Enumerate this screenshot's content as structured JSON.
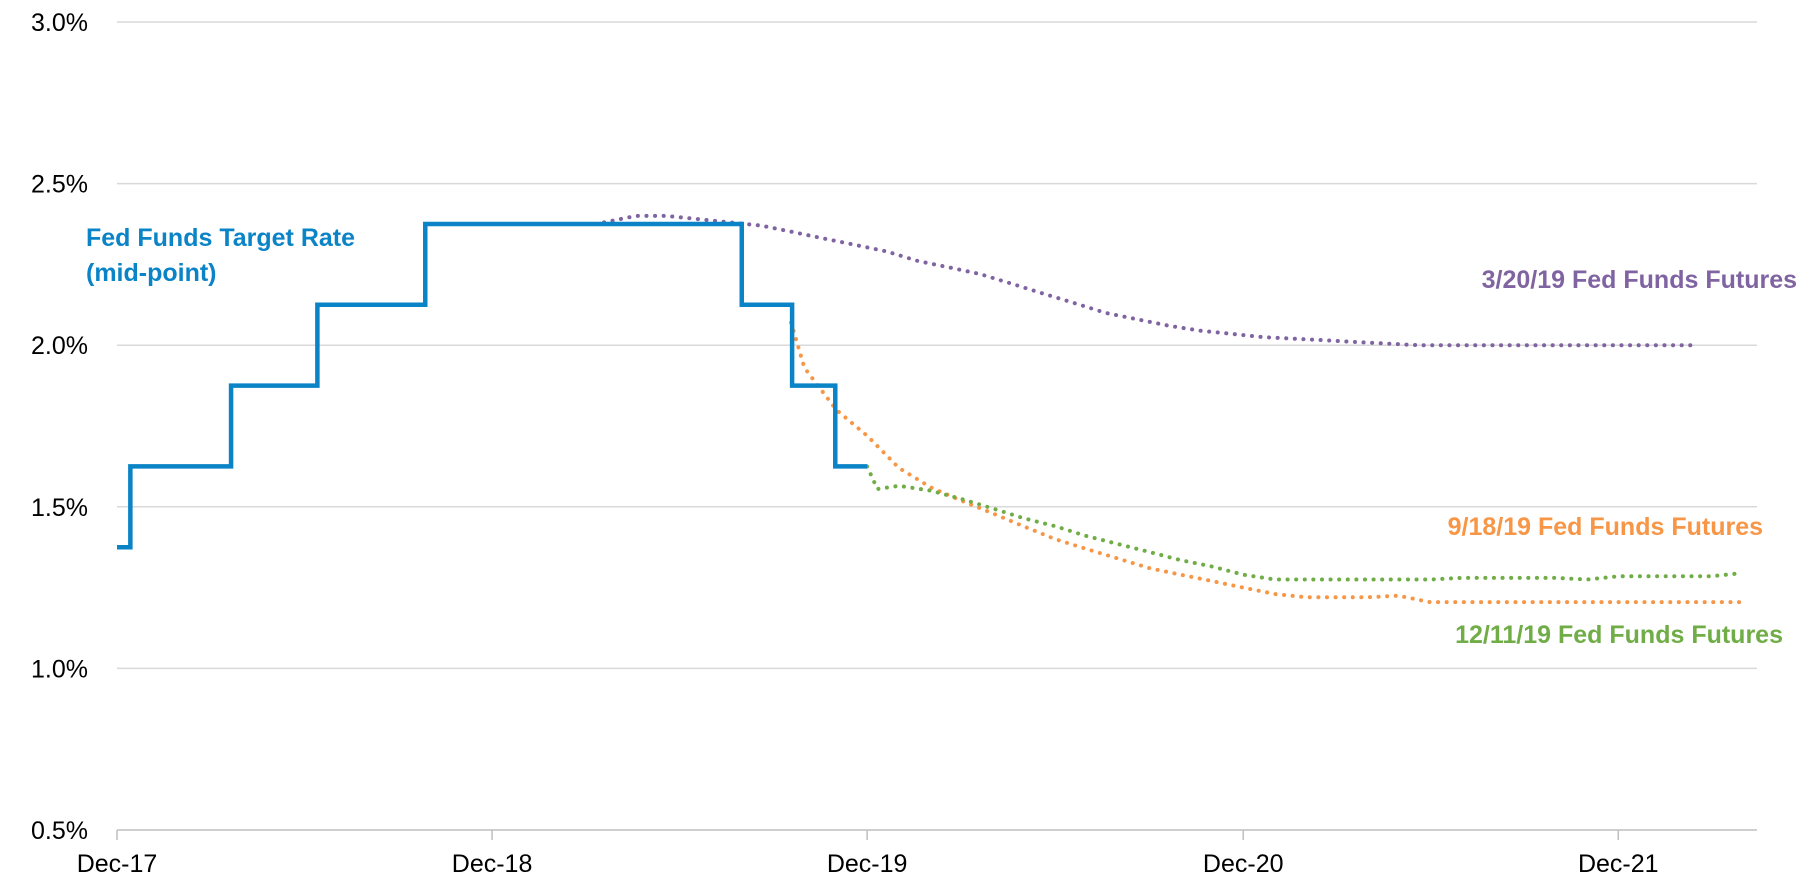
{
  "chart_data": {
    "type": "line",
    "title": "",
    "xlabel": "",
    "ylabel": "",
    "ylim": [
      0.5,
      3.0
    ],
    "xlim": [
      "2017-12-01",
      "2022-04-15"
    ],
    "grid": true,
    "y_ticks": [
      {
        "value": 0.5,
        "label": "0.5%"
      },
      {
        "value": 1.0,
        "label": "1.0%"
      },
      {
        "value": 1.5,
        "label": "1.5%"
      },
      {
        "value": 2.0,
        "label": "2.0%"
      },
      {
        "value": 2.5,
        "label": "2.5%"
      },
      {
        "value": 3.0,
        "label": "3.0%"
      }
    ],
    "x_ticks": [
      {
        "value": "2017-12-01",
        "label": "Dec-17"
      },
      {
        "value": "2018-12-01",
        "label": "Dec-18"
      },
      {
        "value": "2019-12-01",
        "label": "Dec-19"
      },
      {
        "value": "2020-12-01",
        "label": "Dec-20"
      },
      {
        "value": "2021-12-01",
        "label": "Dec-21"
      }
    ],
    "series": [
      {
        "name": "Fed Funds Target Rate (mid-point)",
        "label_lines": [
          "Fed Funds Target Rate",
          "(mid-point)"
        ],
        "color": "#0a84c6",
        "style": "step",
        "x": [
          "2017-12-01",
          "2017-12-14",
          "2018-03-22",
          "2018-06-14",
          "2018-09-27",
          "2018-12-20",
          "2019-08-01",
          "2019-09-19",
          "2019-10-31",
          "2019-12-01"
        ],
        "y": [
          1.375,
          1.625,
          1.875,
          2.125,
          2.375,
          2.375,
          2.125,
          1.875,
          1.625,
          1.625
        ]
      },
      {
        "name": "3/20/19 Fed Funds Futures",
        "color": "#8064a2",
        "style": "dotted",
        "x": [
          "2019-03-20",
          "2019-04-20",
          "2019-05-20",
          "2019-06-20",
          "2019-07-20",
          "2019-08-20",
          "2019-09-20",
          "2019-10-20",
          "2019-11-20",
          "2019-12-20",
          "2020-01-20",
          "2020-02-20",
          "2020-03-20",
          "2020-04-20",
          "2020-05-20",
          "2020-06-20",
          "2020-07-20",
          "2020-08-20",
          "2020-09-20",
          "2020-10-20",
          "2020-11-20",
          "2020-12-20",
          "2021-01-20",
          "2021-02-20",
          "2021-03-20",
          "2021-04-20",
          "2021-05-20",
          "2021-06-20",
          "2021-07-20",
          "2021-08-20",
          "2021-09-20",
          "2021-10-20",
          "2021-11-20",
          "2021-12-20",
          "2022-01-20",
          "2022-02-15"
        ],
        "y": [
          2.38,
          2.4,
          2.4,
          2.39,
          2.38,
          2.37,
          2.35,
          2.33,
          2.31,
          2.29,
          2.26,
          2.24,
          2.22,
          2.19,
          2.16,
          2.13,
          2.1,
          2.08,
          2.06,
          2.045,
          2.035,
          2.025,
          2.02,
          2.015,
          2.01,
          2.005,
          2.0,
          2.0,
          2.0,
          2.0,
          2.0,
          2.0,
          2.0,
          2.0,
          2.0,
          2.0
        ]
      },
      {
        "name": "9/18/19 Fed Funds Futures",
        "color": "#f79646",
        "style": "dotted",
        "x": [
          "2019-09-18",
          "2019-10-01",
          "2019-11-01",
          "2019-12-01",
          "2020-01-01",
          "2020-02-01",
          "2020-03-01",
          "2020-04-01",
          "2020-05-01",
          "2020-06-01",
          "2020-07-01",
          "2020-08-01",
          "2020-09-01",
          "2020-10-01",
          "2020-11-01",
          "2020-12-01",
          "2021-01-01",
          "2021-02-01",
          "2021-03-01",
          "2021-04-01",
          "2021-05-01",
          "2021-06-01",
          "2021-07-01",
          "2021-08-01",
          "2021-09-01",
          "2021-10-01",
          "2021-11-01",
          "2021-12-01",
          "2022-01-01",
          "2022-02-01",
          "2022-03-01",
          "2022-04-01"
        ],
        "y": [
          2.07,
          1.93,
          1.8,
          1.72,
          1.62,
          1.56,
          1.52,
          1.48,
          1.44,
          1.4,
          1.37,
          1.34,
          1.31,
          1.29,
          1.27,
          1.25,
          1.23,
          1.22,
          1.22,
          1.22,
          1.225,
          1.205,
          1.205,
          1.205,
          1.205,
          1.205,
          1.205,
          1.205,
          1.205,
          1.205,
          1.205,
          1.205
        ]
      },
      {
        "name": "12/11/19 Fed Funds Futures",
        "color": "#70ad47",
        "style": "dotted",
        "x": [
          "2019-12-01",
          "2019-12-11",
          "2020-01-01",
          "2020-02-01",
          "2020-03-01",
          "2020-04-01",
          "2020-05-01",
          "2020-06-01",
          "2020-07-01",
          "2020-08-01",
          "2020-09-01",
          "2020-10-01",
          "2020-11-01",
          "2020-12-01",
          "2021-01-01",
          "2021-02-01",
          "2021-03-01",
          "2021-04-01",
          "2021-05-01",
          "2021-06-01",
          "2021-07-01",
          "2021-08-01",
          "2021-09-01",
          "2021-10-01",
          "2021-11-01",
          "2021-12-01",
          "2022-01-01",
          "2022-02-01",
          "2022-03-01",
          "2022-04-01"
        ],
        "y": [
          1.625,
          1.555,
          1.565,
          1.55,
          1.525,
          1.495,
          1.465,
          1.44,
          1.41,
          1.385,
          1.36,
          1.335,
          1.315,
          1.29,
          1.275,
          1.275,
          1.275,
          1.275,
          1.275,
          1.275,
          1.28,
          1.28,
          1.28,
          1.28,
          1.275,
          1.285,
          1.285,
          1.285,
          1.285,
          1.295
        ]
      }
    ]
  }
}
